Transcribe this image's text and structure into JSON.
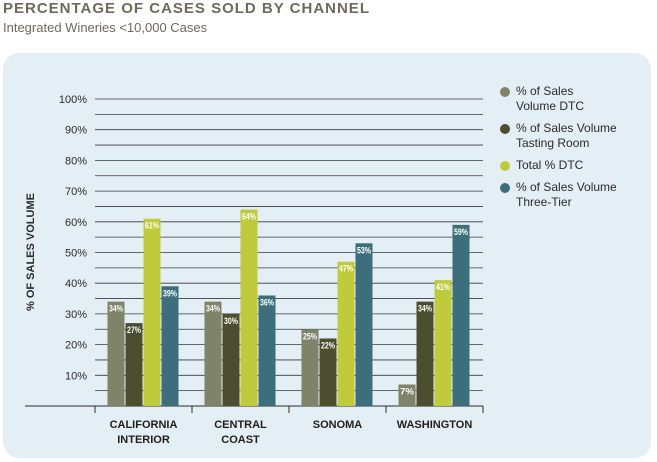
{
  "chart_data": {
    "type": "bar",
    "title": "PERCENTAGE OF CASES SOLD BY CHANNEL",
    "subtitle": "Integrated Wineries <10,000 Cases",
    "ylabel": "% OF SALES VOLUME",
    "ylim": [
      0,
      100
    ],
    "y_ticks": [
      "10%",
      "20%",
      "30%",
      "40%",
      "50%",
      "60%",
      "70%",
      "80%",
      "90%",
      "100%"
    ],
    "grid": true,
    "legend_position": "right",
    "categories": [
      [
        "CALIFORNIA",
        "INTERIOR"
      ],
      [
        "CENTRAL",
        "COAST"
      ],
      [
        "SONOMA"
      ],
      [
        "WASHINGTON"
      ]
    ],
    "series": [
      {
        "name": "% of Sales\nVolume DTC",
        "color": "#7f8368",
        "values": [
          34,
          34,
          25,
          7
        ]
      },
      {
        "name": "% of Sales Volume\nTasting Room",
        "color": "#4b4e2f",
        "values": [
          27,
          30,
          22,
          34
        ]
      },
      {
        "name": "Total % DTC",
        "color": "#bfcb3c",
        "values": [
          61,
          64,
          47,
          41
        ]
      },
      {
        "name": "% of Sales Volume\nThree-Tier",
        "color": "#3c6f7b",
        "values": [
          39,
          36,
          53,
          59
        ]
      }
    ],
    "data_labels": [
      [
        "34%",
        "34%",
        "25%",
        "7%"
      ],
      [
        "27%",
        "30%",
        "22%",
        "34%"
      ],
      [
        "61%",
        "64%",
        "47%",
        "41%"
      ],
      [
        "39%",
        "36%",
        "53%",
        "59%"
      ]
    ]
  }
}
